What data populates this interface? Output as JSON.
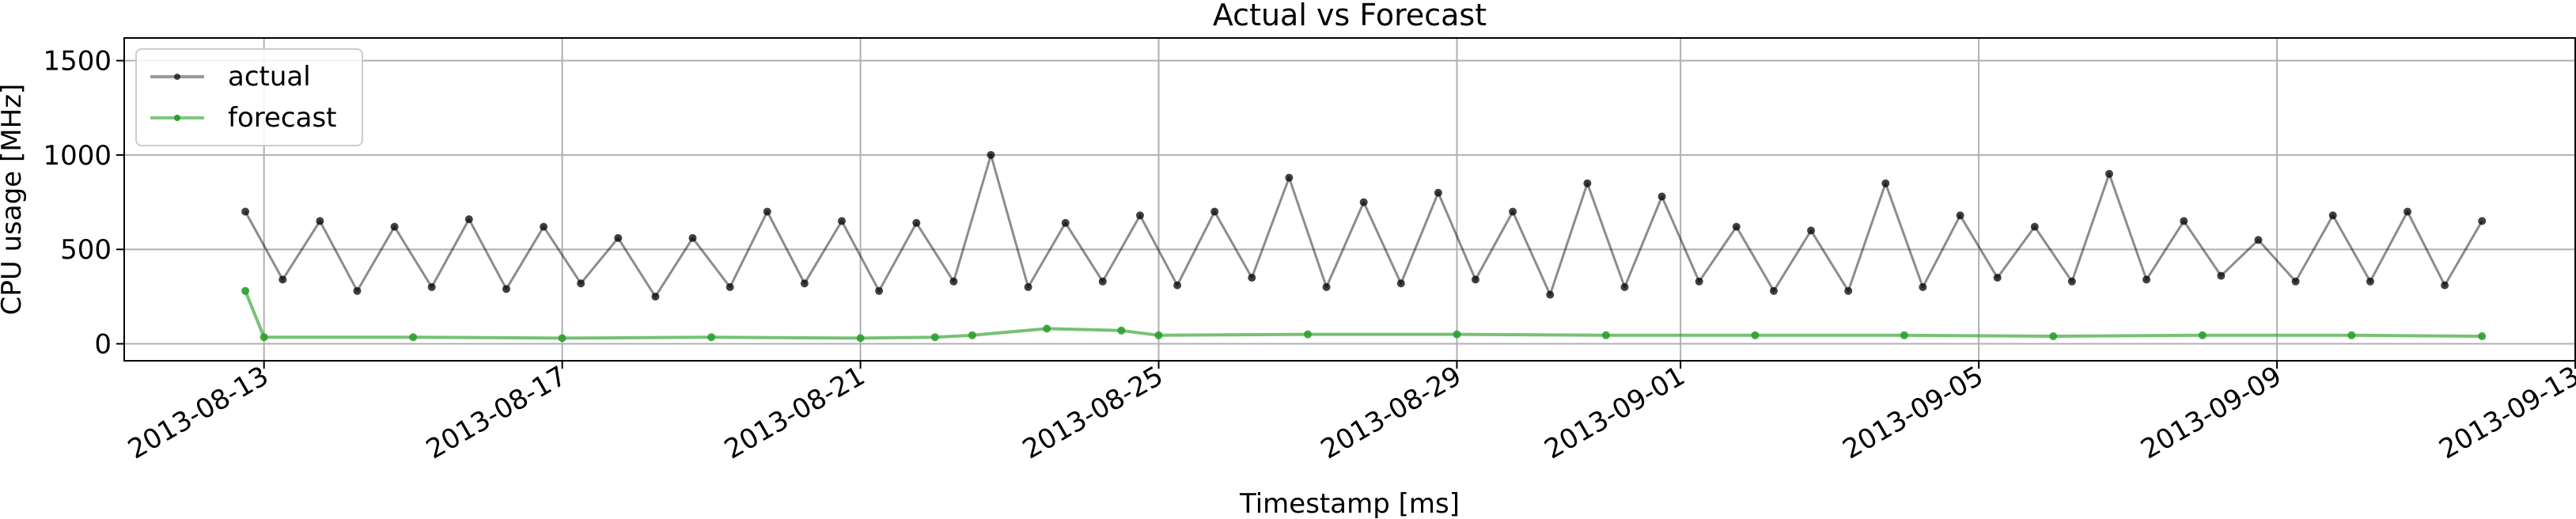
{
  "chart_data": {
    "type": "line",
    "title": "Actual vs Forecast",
    "xlabel": "Timestamp [ms]",
    "ylabel": "CPU usage [MHz]",
    "x_type": "date",
    "xlim": [
      "2013-08-11T03:00",
      "2013-09-13T00:00"
    ],
    "ylim": [
      -90,
      1620
    ],
    "x_ticks": [
      "2013-08-13",
      "2013-08-17",
      "2013-08-21",
      "2013-08-25",
      "2013-08-29",
      "2013-09-01",
      "2013-09-05",
      "2013-09-09",
      "2013-09-13"
    ],
    "y_ticks": [
      0,
      500,
      1000,
      1500
    ],
    "y_tick_labels": [
      "0",
      "500",
      "1000",
      "1500"
    ],
    "grid": true,
    "legend": {
      "position": "top-left",
      "entries": [
        "actual",
        "forecast"
      ]
    },
    "series": [
      {
        "name": "actual",
        "color": "#000000",
        "x": [
          "2013-08-12T18:00",
          "2013-08-13T06:00",
          "2013-08-13T18:00",
          "2013-08-14T06:00",
          "2013-08-14T18:00",
          "2013-08-15T06:00",
          "2013-08-15T18:00",
          "2013-08-16T06:00",
          "2013-08-16T18:00",
          "2013-08-17T06:00",
          "2013-08-17T18:00",
          "2013-08-18T06:00",
          "2013-08-18T18:00",
          "2013-08-19T06:00",
          "2013-08-19T18:00",
          "2013-08-20T06:00",
          "2013-08-20T18:00",
          "2013-08-21T06:00",
          "2013-08-21T18:00",
          "2013-08-22T06:00",
          "2013-08-22T18:00",
          "2013-08-23T06:00",
          "2013-08-23T18:00",
          "2013-08-24T06:00",
          "2013-08-24T18:00",
          "2013-08-25T06:00",
          "2013-08-25T18:00",
          "2013-08-26T06:00",
          "2013-08-26T18:00",
          "2013-08-27T06:00",
          "2013-08-27T18:00",
          "2013-08-28T06:00",
          "2013-08-28T18:00",
          "2013-08-29T06:00",
          "2013-08-29T18:00",
          "2013-08-30T06:00",
          "2013-08-30T18:00",
          "2013-08-31T06:00",
          "2013-08-31T18:00",
          "2013-09-01T06:00",
          "2013-09-01T18:00",
          "2013-09-02T06:00",
          "2013-09-02T18:00",
          "2013-09-03T06:00",
          "2013-09-03T18:00",
          "2013-09-04T06:00",
          "2013-09-04T18:00",
          "2013-09-05T06:00",
          "2013-09-05T18:00",
          "2013-09-06T06:00",
          "2013-09-06T18:00",
          "2013-09-07T06:00",
          "2013-09-07T18:00",
          "2013-09-08T06:00",
          "2013-09-08T18:00",
          "2013-09-09T06:00",
          "2013-09-09T18:00",
          "2013-09-10T06:00",
          "2013-09-10T18:00",
          "2013-09-11T06:00",
          "2013-09-11T18:00"
        ],
        "values": [
          700,
          340,
          650,
          280,
          620,
          300,
          660,
          290,
          620,
          320,
          560,
          250,
          560,
          300,
          700,
          320,
          650,
          280,
          640,
          330,
          1000,
          300,
          640,
          330,
          680,
          310,
          700,
          350,
          880,
          300,
          750,
          320,
          800,
          340,
          700,
          260,
          850,
          300,
          780,
          330,
          620,
          280,
          600,
          280,
          850,
          300,
          680,
          350,
          620,
          330,
          900,
          340,
          650,
          360,
          550,
          330,
          680,
          330,
          700,
          310,
          650
        ]
      },
      {
        "name": "forecast",
        "color": "#2ca02c",
        "x": [
          "2013-08-12T18:00",
          "2013-08-13T00:00",
          "2013-08-15T00:00",
          "2013-08-17T00:00",
          "2013-08-19T00:00",
          "2013-08-21T00:00",
          "2013-08-22T00:00",
          "2013-08-22T12:00",
          "2013-08-23T12:00",
          "2013-08-24T12:00",
          "2013-08-25T00:00",
          "2013-08-27T00:00",
          "2013-08-29T00:00",
          "2013-08-31T00:00",
          "2013-09-02T00:00",
          "2013-09-04T00:00",
          "2013-09-06T00:00",
          "2013-09-08T00:00",
          "2013-09-10T00:00",
          "2013-09-11T18:00"
        ],
        "values": [
          280,
          35,
          35,
          30,
          35,
          30,
          35,
          45,
          80,
          70,
          45,
          50,
          50,
          45,
          45,
          45,
          40,
          45,
          45,
          40
        ]
      }
    ]
  }
}
